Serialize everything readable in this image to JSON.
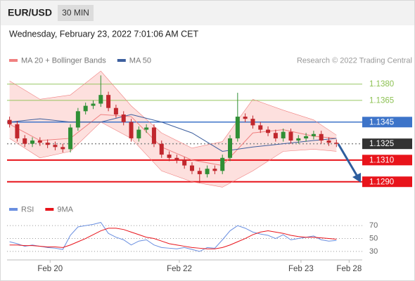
{
  "header": {
    "symbol": "EUR/USD",
    "interval": "30 MIN",
    "timestamp": "Wednesday, February 23, 2022 7:01:06 AM CET"
  },
  "chart_data": [
    {
      "type": "candlestick",
      "credit": "Research © 2022 Trading Central",
      "x": [
        0.5,
        2,
        3.5,
        5,
        6.5,
        8,
        9.5,
        11,
        12.5,
        14,
        15.5,
        17,
        18.5,
        20,
        21.5,
        23,
        24.5,
        26,
        27.5,
        29,
        30.5,
        32,
        33.5,
        35,
        36.5,
        38,
        39.5,
        41,
        42.5,
        44,
        45.5,
        47,
        48.5,
        50,
        51.5,
        53,
        54.5,
        56,
        57.5,
        59,
        60.5,
        62,
        63.5,
        65
      ],
      "open": [
        1.1347,
        1.1343,
        1.133,
        1.1325,
        1.1328,
        1.1326,
        1.1324,
        1.1322,
        1.132,
        1.134,
        1.1355,
        1.136,
        1.1362,
        1.137,
        1.1358,
        1.1352,
        1.1345,
        1.133,
        1.1338,
        1.134,
        1.1325,
        1.1315,
        1.1312,
        1.131,
        1.1305,
        1.13,
        1.1297,
        1.1302,
        1.13,
        1.1312,
        1.133,
        1.135,
        1.1348,
        1.1342,
        1.1338,
        1.1335,
        1.133,
        1.1336,
        1.1328,
        1.133,
        1.1332,
        1.1334,
        1.1328,
        1.1326
      ],
      "high": [
        1.135,
        1.1346,
        1.1333,
        1.1331,
        1.1331,
        1.1329,
        1.1327,
        1.1325,
        1.1343,
        1.1358,
        1.1363,
        1.1365,
        1.1388,
        1.1373,
        1.1361,
        1.1355,
        1.1348,
        1.1341,
        1.1343,
        1.1343,
        1.1328,
        1.1318,
        1.1315,
        1.1313,
        1.1308,
        1.1303,
        1.1305,
        1.1305,
        1.1315,
        1.1333,
        1.1372,
        1.1353,
        1.1351,
        1.1345,
        1.1341,
        1.1338,
        1.1339,
        1.1339,
        1.1333,
        1.1335,
        1.1337,
        1.1337,
        1.1331,
        1.1329
      ],
      "low": [
        1.134,
        1.1327,
        1.1322,
        1.1322,
        1.1323,
        1.1321,
        1.1319,
        1.1317,
        1.1317,
        1.1337,
        1.1352,
        1.1357,
        1.1359,
        1.1355,
        1.1349,
        1.1342,
        1.1327,
        1.1327,
        1.1335,
        1.1322,
        1.1312,
        1.1309,
        1.1307,
        1.1302,
        1.1297,
        1.1289,
        1.1294,
        1.1297,
        1.1297,
        1.1309,
        1.1327,
        1.1345,
        1.1339,
        1.1335,
        1.1332,
        1.1327,
        1.1327,
        1.1325,
        1.1325,
        1.1327,
        1.1329,
        1.1325,
        1.1323,
        1.1322
      ],
      "close": [
        1.1343,
        1.133,
        1.1325,
        1.1328,
        1.1326,
        1.1324,
        1.1322,
        1.132,
        1.134,
        1.1355,
        1.136,
        1.1362,
        1.137,
        1.1358,
        1.1352,
        1.1345,
        1.133,
        1.1338,
        1.134,
        1.1325,
        1.1315,
        1.1312,
        1.131,
        1.1305,
        1.13,
        1.1297,
        1.1302,
        1.13,
        1.1312,
        1.133,
        1.135,
        1.1348,
        1.1342,
        1.1338,
        1.1335,
        1.133,
        1.1336,
        1.1328,
        1.133,
        1.1332,
        1.1334,
        1.1328,
        1.1326,
        1.1325
      ],
      "up_color": "#2f8f35",
      "down_color": "#c1272d",
      "series": [
        {
          "name": "MA 20 + Bollinger Bands",
          "color": "#f08080",
          "band_color": "#fde0de",
          "x": [
            0.5,
            6.5,
            12.5,
            18.5,
            24.5,
            30.5,
            36.5,
            42.5,
            48.5,
            54.5,
            60.5,
            65
          ],
          "values": [
            1.1343,
            1.1328,
            1.133,
            1.1352,
            1.135,
            1.1322,
            1.131,
            1.1305,
            1.1335,
            1.1338,
            1.1332,
            1.133
          ],
          "upper": [
            1.1383,
            1.1366,
            1.137,
            1.1392,
            1.136,
            1.1335,
            1.1321,
            1.1327,
            1.1366,
            1.1356,
            1.1347,
            1.1333
          ],
          "lower": [
            1.133,
            1.1312,
            1.1318,
            1.1345,
            1.133,
            1.13,
            1.129,
            1.1285,
            1.13,
            1.1318,
            1.132,
            1.1318
          ]
        },
        {
          "name": "MA 50",
          "color": "#3d5f9e",
          "x": [
            0.5,
            6.5,
            12.5,
            18.5,
            24.5,
            30.5,
            36.5,
            42.5,
            48.5,
            54.5,
            60.5,
            65
          ],
          "values": [
            1.1345,
            1.1348,
            1.1345,
            1.1345,
            1.1352,
            1.1345,
            1.1335,
            1.1318,
            1.1322,
            1.1325,
            1.1328,
            1.133
          ]
        }
      ],
      "xlim": [
        0,
        80.5
      ],
      "ylim": [
        1.1284,
        1.1396
      ],
      "yticks": [
        {
          "value": 1.138,
          "label": "1.1380"
        },
        {
          "value": 1.1365,
          "label": "1.1365"
        },
        {
          "value": 1.1345,
          "label": "1.1345"
        },
        {
          "value": 1.1325,
          "label": "1.1325"
        },
        {
          "value": 1.131,
          "label": "1.1310"
        },
        {
          "value": 1.129,
          "label": "1.1290"
        }
      ],
      "ytick_colors": [
        "#8cc152",
        "#8cc152",
        "#3d74c9",
        "#333333",
        "#e8141b",
        "#e8141b"
      ],
      "ytick_boxed": [
        false,
        false,
        true,
        true,
        true,
        true
      ],
      "ytick_line_styles": [
        "solid",
        "solid",
        "solid",
        "dotted",
        "solid",
        "solid"
      ]
    },
    {
      "type": "line",
      "x": [
        0.5,
        2,
        3.5,
        5,
        6.5,
        8,
        9.5,
        11,
        12.5,
        14,
        15.5,
        17,
        18.5,
        20,
        21.5,
        23,
        24.5,
        26,
        27.5,
        29,
        30.5,
        32,
        33.5,
        35,
        36.5,
        38,
        39.5,
        41,
        42.5,
        44,
        45.5,
        47,
        48.5,
        50,
        51.5,
        53,
        54.5,
        56,
        57.5,
        59,
        60.5,
        62,
        63.5,
        65
      ],
      "series": [
        {
          "name": "RSI",
          "color": "#6a8fe0",
          "values": [
            45,
            42,
            38,
            40,
            38,
            36,
            35,
            33,
            55,
            68,
            70,
            72,
            75,
            58,
            52,
            48,
            40,
            46,
            48,
            40,
            36,
            35,
            34,
            36,
            33,
            30,
            36,
            35,
            48,
            62,
            70,
            66,
            60,
            57,
            55,
            50,
            56,
            48,
            50,
            52,
            54,
            48,
            46,
            47
          ]
        },
        {
          "name": "9MA",
          "color": "#e8141b",
          "values": [
            40,
            40,
            39,
            39,
            38,
            37,
            37,
            36,
            40,
            45,
            50,
            56,
            62,
            66,
            66,
            64,
            60,
            56,
            52,
            50,
            46,
            42,
            40,
            38,
            36,
            35,
            34,
            34,
            36,
            40,
            45,
            50,
            56,
            60,
            62,
            60,
            58,
            55,
            53,
            52,
            52,
            51,
            50,
            49
          ]
        }
      ],
      "xlim": [
        0,
        80.5
      ],
      "ylim": [
        19,
        80
      ],
      "yticks": [
        30,
        50,
        70
      ],
      "xticks": [
        {
          "value": 8.5,
          "label": "Feb 20"
        },
        {
          "value": 34,
          "label": "Feb 22"
        },
        {
          "value": 58,
          "label": "Feb 23"
        },
        {
          "value": 67.5,
          "label": "Feb 28"
        }
      ]
    }
  ]
}
